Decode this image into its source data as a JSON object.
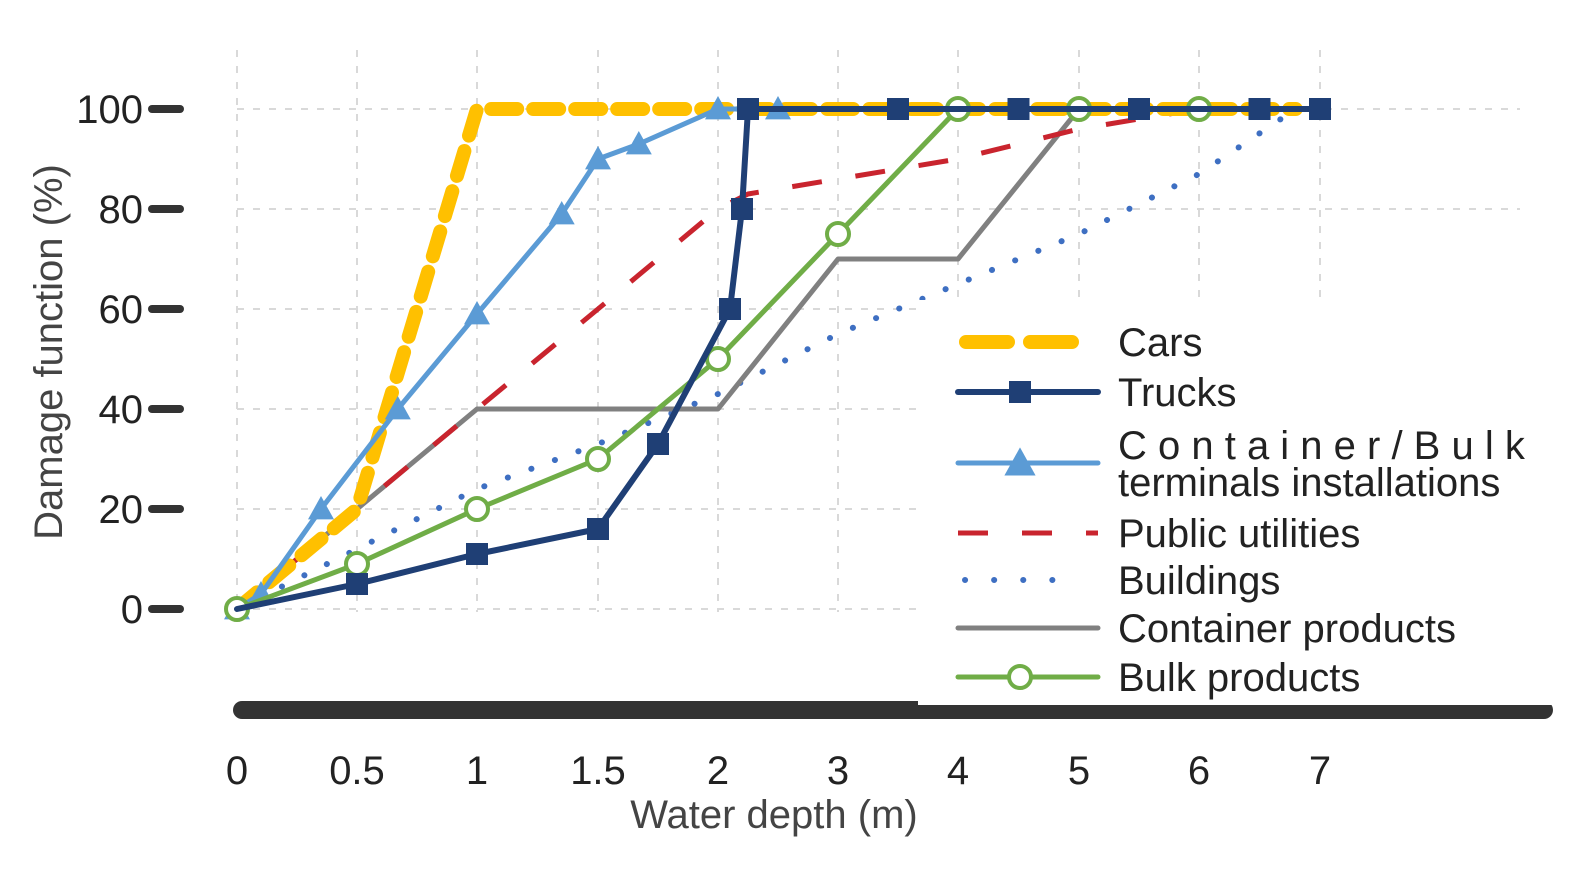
{
  "chart_data": {
    "type": "line",
    "title": "",
    "xlabel": "Water depth (m)",
    "ylabel": "Damage function (%)",
    "x_ticks": [
      "0",
      "0.5",
      "1",
      "1.5",
      "2",
      "3",
      "4",
      "5",
      "6",
      "7"
    ],
    "y_ticks": [
      "0",
      "20",
      "40",
      "60",
      "80",
      "100"
    ],
    "ylim": [
      0,
      100
    ],
    "grid": true,
    "legend_position": "right",
    "series": [
      {
        "name": "Cars",
        "color": "#FFC000",
        "style": "dashed-thick",
        "marker": "none",
        "x": [
          0,
          0.5,
          1,
          2,
          3,
          4,
          5,
          6,
          6.8
        ],
        "y": [
          0,
          20,
          100,
          100,
          100,
          100,
          100,
          100,
          100
        ]
      },
      {
        "name": "Trucks",
        "color": "#1F3F75",
        "style": "solid",
        "marker": "square",
        "x": [
          0,
          0.5,
          1,
          1.5,
          1.75,
          2.1,
          2.2,
          2.25,
          3.5,
          4.5,
          5.5,
          6.5,
          7
        ],
        "y": [
          0,
          5,
          11,
          16,
          33,
          60,
          80,
          100,
          100,
          100,
          100,
          100,
          100
        ]
      },
      {
        "name": "Container / Bulk terminals installations",
        "name_lines": [
          "C o n t a i n e r / B u l k",
          "terminals installations"
        ],
        "color": "#5B9BD5",
        "style": "solid",
        "marker": "triangle",
        "x": [
          0,
          0.1,
          0.35,
          0.67,
          1,
          1.35,
          1.5,
          1.67,
          2,
          2.5
        ],
        "y": [
          0,
          3,
          20,
          40,
          59,
          79,
          90,
          93,
          100,
          100
        ]
      },
      {
        "name": "Public utilities",
        "color": "#C9242E",
        "style": "dashed",
        "marker": "none",
        "x": [
          0,
          0.5,
          1,
          1.5,
          2,
          2.25,
          3,
          4,
          5,
          6,
          7
        ],
        "y": [
          0,
          20,
          40,
          60,
          80,
          83,
          86,
          90,
          96,
          100,
          100
        ]
      },
      {
        "name": "Buildings",
        "color": "#3E6FC2",
        "style": "dotted",
        "marker": "none",
        "x": [
          0,
          1,
          1.5,
          2,
          3,
          4,
          5,
          6,
          6.8
        ],
        "y": [
          0,
          24,
          33,
          43,
          55,
          65,
          75,
          87,
          100
        ]
      },
      {
        "name": "Container products",
        "color": "#808080",
        "style": "solid",
        "marker": "none",
        "x": [
          0,
          1,
          1.5,
          2,
          3,
          4,
          5,
          6,
          7
        ],
        "y": [
          0,
          40,
          40,
          40,
          70,
          70,
          100,
          100,
          100
        ]
      },
      {
        "name": "Bulk products",
        "color": "#70AD47",
        "style": "solid",
        "marker": "circle",
        "x": [
          0,
          0.5,
          1,
          1.5,
          2,
          3,
          4,
          5,
          6
        ],
        "y": [
          0,
          9,
          20,
          30,
          50,
          75,
          100,
          100,
          100
        ]
      }
    ]
  }
}
